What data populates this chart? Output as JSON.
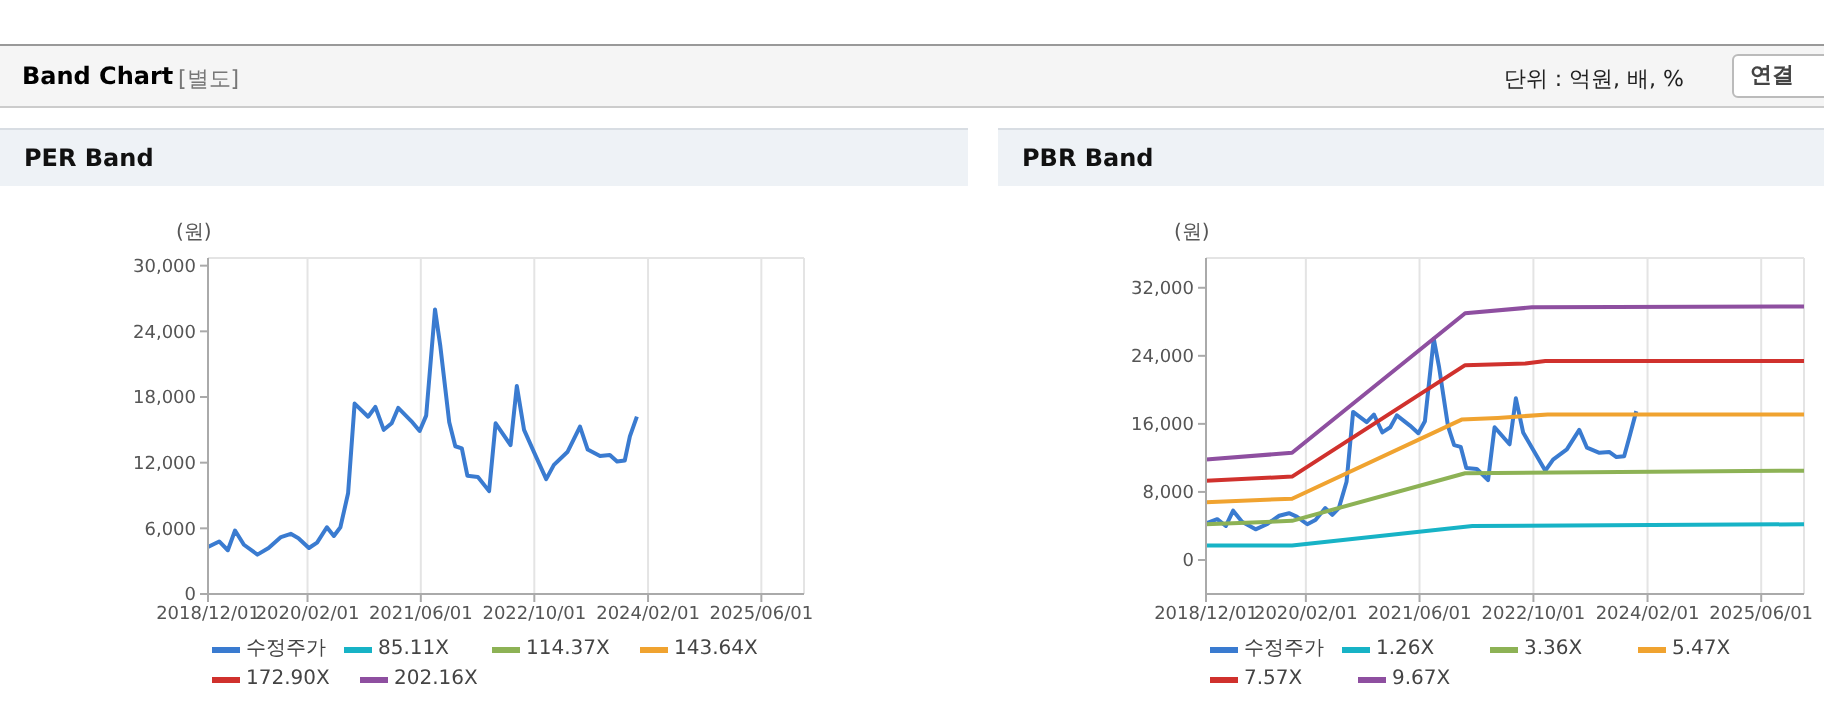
{
  "chart_data": [
    {
      "type": "line",
      "title": "PER Band",
      "ylabel": "(원)",
      "annotations": [
        "Band Chart",
        "[별도]",
        "단위 : 억원, 배, %",
        "연결"
      ],
      "xlim": [
        "2018-12-01",
        "2025-12-01"
      ],
      "xticks": [
        {
          "value": "2018-12-01",
          "label": "2018/12/01"
        },
        {
          "value": "2020-02-01",
          "label": "2020/02/01"
        },
        {
          "value": "2021-06-01",
          "label": "2021/06/01"
        },
        {
          "value": "2022-10-01",
          "label": "2022/10/01"
        },
        {
          "value": "2024-02-01",
          "label": "2024/02/01"
        },
        {
          "value": "2025-06-01",
          "label": "2025/06/01"
        }
      ],
      "ylim": [
        0,
        30700
      ],
      "yticks": [
        0,
        {
          "value": 6000,
          "label": "6,000"
        },
        {
          "value": 12000,
          "label": "12,000"
        },
        {
          "value": 18000,
          "label": "18,000"
        },
        {
          "value": 24000,
          "label": "24,000"
        },
        {
          "value": 30000,
          "label": "30,000"
        }
      ],
      "grid": true,
      "legend": "bottom",
      "marker": "none",
      "line_style": "solid",
      "series": [
        {
          "name": "수정주가",
          "color": "#3a7bd0",
          "x": [
            "2018-12-01",
            "2019-01-18",
            "2019-02-24",
            "2019-03-27",
            "2019-05-04",
            "2019-07-01",
            "2019-08-18",
            "2019-10-10",
            "2019-11-21",
            "2019-12-24",
            "2020-02-07",
            "2020-03-13",
            "2020-04-24",
            "2020-05-24",
            "2020-06-21",
            "2020-07-24",
            "2020-08-21",
            "2020-10-18",
            "2020-11-18",
            "2020-12-24",
            "2021-01-27",
            "2021-02-24",
            "2021-04-21",
            "2021-05-27",
            "2021-06-24",
            "2021-08-01",
            "2021-08-24",
            "2021-10-01",
            "2021-10-27",
            "2021-11-24",
            "2021-12-18",
            "2022-02-01",
            "2022-03-21",
            "2022-04-18",
            "2022-06-21",
            "2022-07-18",
            "2022-08-18",
            "2022-10-01",
            "2022-11-21",
            "2022-12-24",
            "2023-02-21",
            "2023-04-15",
            "2023-05-18",
            "2023-07-10",
            "2023-08-21",
            "2023-09-21",
            "2023-10-24",
            "2023-11-15",
            "2023-12-15"
          ],
          "values": [
            4300,
            4800,
            4000,
            5800,
            4500,
            3600,
            4200,
            5200,
            5500,
            5100,
            4200,
            4700,
            6100,
            5300,
            6100,
            9200,
            17400,
            16200,
            17100,
            15000,
            15600,
            17000,
            15800,
            14900,
            16300,
            26000,
            22600,
            15700,
            13500,
            13300,
            10800,
            10700,
            9400,
            15600,
            13600,
            19000,
            15000,
            12900,
            10500,
            11800,
            13000,
            15300,
            13200,
            12600,
            12700,
            12100,
            12200,
            14400,
            16200
          ]
        },
        {
          "name": "85.11X",
          "color": "#17b3c6"
        },
        {
          "name": "114.37X",
          "color": "#8db255"
        },
        {
          "name": "143.64X",
          "color": "#f0a330"
        },
        {
          "name": "172.90X",
          "color": "#d0312d"
        },
        {
          "name": "202.16X",
          "color": "#8e4fa0"
        }
      ]
    },
    {
      "type": "line",
      "title": "PBR Band",
      "ylabel": "(원)",
      "xlim": [
        "2018-12-01",
        "2025-12-01"
      ],
      "xticks": [
        {
          "value": "2018-12-01",
          "label": "2018/12/01"
        },
        {
          "value": "2020-02-01",
          "label": "2020/02/01"
        },
        {
          "value": "2021-06-01",
          "label": "2021/06/01"
        },
        {
          "value": "2022-10-01",
          "label": "2022/10/01"
        },
        {
          "value": "2024-02-01",
          "label": "2024/02/01"
        },
        {
          "value": "2025-06-01",
          "label": "2025/06/01"
        }
      ],
      "ylim": [
        -4000,
        35500
      ],
      "yticks": [
        0,
        {
          "value": 8000,
          "label": "8,000"
        },
        {
          "value": 16000,
          "label": "16,000"
        },
        {
          "value": 24000,
          "label": "24,000"
        },
        {
          "value": 32000,
          "label": "32,000"
        }
      ],
      "grid": true,
      "legend": "bottom",
      "marker": "none",
      "line_style": "solid",
      "series": [
        {
          "name": "수정주가",
          "color": "#3a7bd0",
          "x": [
            "2018-12-01",
            "2019-01-18",
            "2019-02-24",
            "2019-03-27",
            "2019-05-04",
            "2019-07-01",
            "2019-08-18",
            "2019-10-10",
            "2019-11-21",
            "2019-12-24",
            "2020-02-07",
            "2020-03-13",
            "2020-04-24",
            "2020-05-24",
            "2020-06-21",
            "2020-07-24",
            "2020-08-21",
            "2020-10-18",
            "2020-11-18",
            "2020-12-24",
            "2021-01-27",
            "2021-02-24",
            "2021-04-21",
            "2021-05-27",
            "2021-06-24",
            "2021-08-01",
            "2021-08-24",
            "2021-10-01",
            "2021-10-27",
            "2021-11-24",
            "2021-12-18",
            "2022-02-01",
            "2022-03-21",
            "2022-04-18",
            "2022-06-21",
            "2022-07-18",
            "2022-08-18",
            "2022-10-01",
            "2022-11-21",
            "2022-12-24",
            "2023-02-21",
            "2023-04-15",
            "2023-05-18",
            "2023-07-10",
            "2023-08-21",
            "2023-09-21",
            "2023-10-24",
            "2023-11-15",
            "2023-12-15"
          ],
          "values": [
            4300,
            4800,
            4000,
            5800,
            4500,
            3600,
            4200,
            5200,
            5500,
            5100,
            4200,
            4700,
            6100,
            5300,
            6100,
            9200,
            17400,
            16200,
            17100,
            15000,
            15600,
            17000,
            15800,
            14900,
            16300,
            26000,
            22600,
            15700,
            13500,
            13300,
            10800,
            10700,
            9400,
            15600,
            13600,
            19000,
            15000,
            12900,
            10500,
            11800,
            13000,
            15300,
            13200,
            12600,
            12700,
            12100,
            12200,
            14400,
            17500
          ]
        },
        {
          "name": "1.26X",
          "color": "#17b3c6",
          "x": [
            "2018-12-01",
            "2019-12-04",
            "2022-01-13",
            "2025-12-01"
          ],
          "values": [
            1700,
            1700,
            4000,
            4200
          ]
        },
        {
          "name": "3.36X",
          "color": "#8db255",
          "x": [
            "2018-12-01",
            "2019-12-04",
            "2021-12-13",
            "2025-12-01"
          ],
          "values": [
            4200,
            4600,
            10200,
            10500
          ]
        },
        {
          "name": "5.47X",
          "color": "#f0a330",
          "x": [
            "2018-12-01",
            "2019-12-04",
            "2021-11-28",
            "2022-05-01",
            "2022-12-01",
            "2025-12-01"
          ],
          "values": [
            6800,
            7200,
            16500,
            16700,
            17100,
            17100
          ]
        },
        {
          "name": "7.57X",
          "color": "#d0312d",
          "x": [
            "2018-12-01",
            "2019-12-04",
            "2021-12-13",
            "2022-08-28",
            "2022-11-21",
            "2025-12-01"
          ],
          "values": [
            9300,
            9800,
            22900,
            23100,
            23400,
            23400
          ]
        },
        {
          "name": "9.67X",
          "color": "#8e4fa0",
          "x": [
            "2018-12-01",
            "2019-12-04",
            "2021-12-13",
            "2022-09-25",
            "2025-12-01"
          ],
          "values": [
            11800,
            12600,
            29000,
            29700,
            29800
          ]
        }
      ]
    }
  ]
}
